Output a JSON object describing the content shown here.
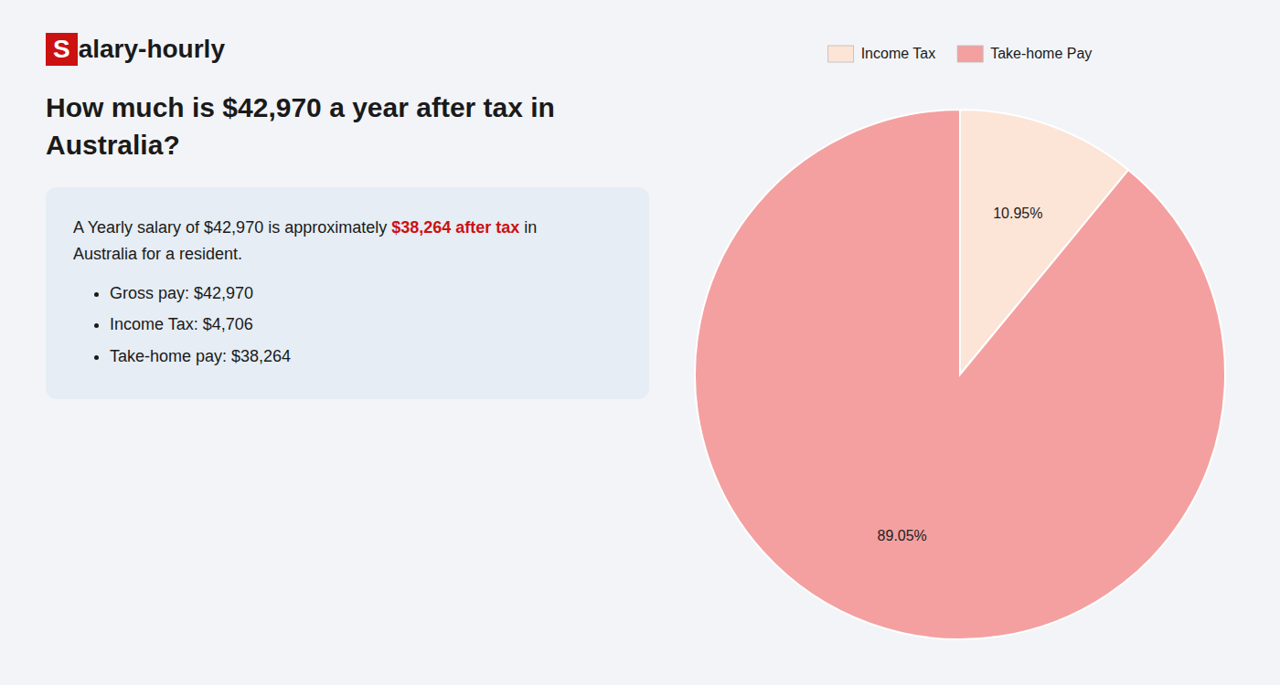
{
  "chart_data": {
    "type": "pie",
    "title": "How much is $42,970 a year after tax in\nAustralia?",
    "categories": [
      "Income Tax",
      "Take-home Pay"
    ],
    "values": [
      10.95,
      89.05
    ],
    "value_labels": [
      "10.95%",
      "89.05%"
    ],
    "colors": [
      "#fce4d6",
      "#f4a0a0"
    ],
    "data_labels": true,
    "legend": "top",
    "annotations": [
      "S",
      "alary-hourly",
      "A Yearly salary of $42,970 is approximately ",
      "$38,264 after tax",
      " in",
      "Australia for a resident.",
      "Gross pay: $42,970",
      "Income Tax: $4,706",
      "Take-home pay: $38,264"
    ]
  }
}
